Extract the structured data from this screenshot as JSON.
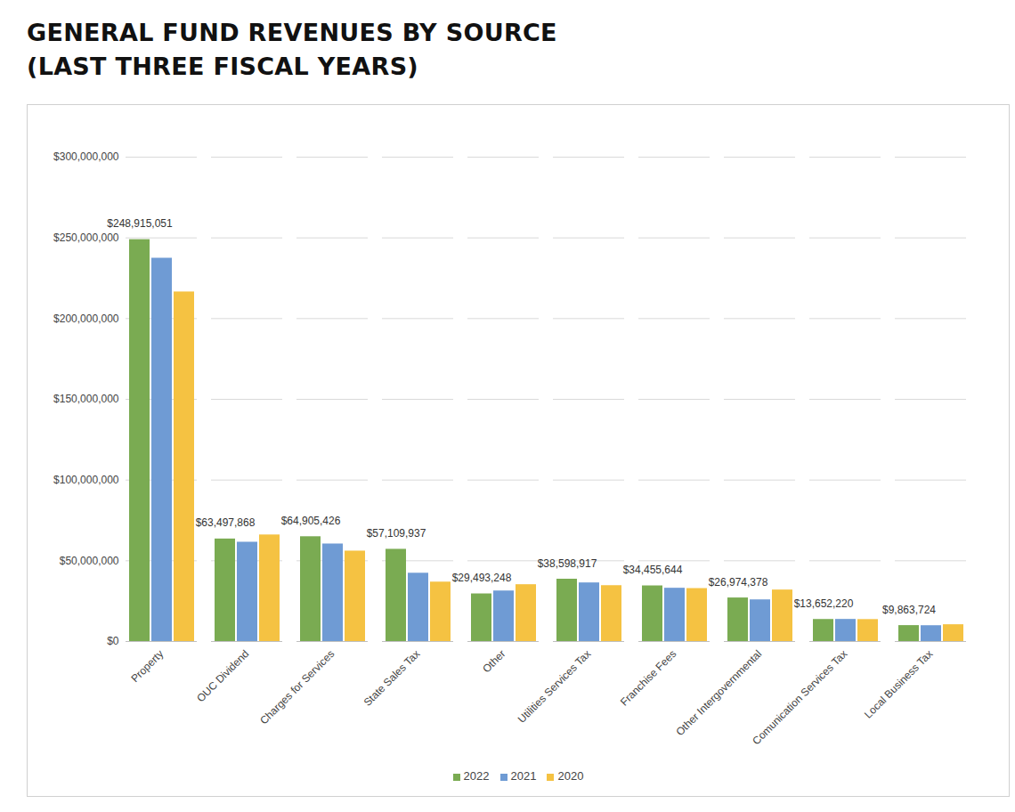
{
  "chart_data": {
    "type": "bar",
    "title": "GENERAL FUND REVENUES BY SOURCE",
    "subtitle": "(LAST THREE FISCAL YEARS)",
    "categories": [
      "Property",
      "OUC Dividend",
      "Charges for Services",
      "State Sales Tax",
      "Other",
      "Utilities Services Tax",
      "Franchise Fees",
      "Other Intergovernmental",
      "Comunication Services Tax",
      "Local Business Tax"
    ],
    "series": [
      {
        "name": "2022",
        "color": "#7aab52",
        "values": [
          248915051,
          63497868,
          64905426,
          57109937,
          29493248,
          38598917,
          34455644,
          26974378,
          13652220,
          9863724
        ],
        "value_labels": [
          "$248,915,051",
          "$63,497,868",
          "$64,905,426",
          "$57,109,937",
          "$29,493,248",
          "$38,598,917",
          "$34,455,644",
          "$26,974,378",
          "$13,652,220",
          "$9,863,724"
        ]
      },
      {
        "name": "2021",
        "color": "#6f9bd4",
        "values": [
          237400000,
          61500000,
          60400000,
          42300000,
          31300000,
          36300000,
          33000000,
          25800000,
          13700000,
          9800000
        ]
      },
      {
        "name": "2020",
        "color": "#f5c242",
        "values": [
          216500000,
          66000000,
          56000000,
          36800000,
          35200000,
          34600000,
          32800000,
          31900000,
          13600000,
          10400000
        ]
      }
    ],
    "ylim": [
      0,
      300000000
    ],
    "yticks": [
      {
        "value": 0,
        "label": "$0"
      },
      {
        "value": 50000000,
        "label": "$50,000,000"
      },
      {
        "value": 100000000,
        "label": "$100,000,000"
      },
      {
        "value": 150000000,
        "label": "$150,000,000"
      },
      {
        "value": 200000000,
        "label": "$200,000,000"
      },
      {
        "value": 250000000,
        "label": "$250,000,000"
      },
      {
        "value": 300000000,
        "label": "$300,000,000"
      }
    ],
    "grid": true,
    "legend": "bottom",
    "data_labels": true
  }
}
